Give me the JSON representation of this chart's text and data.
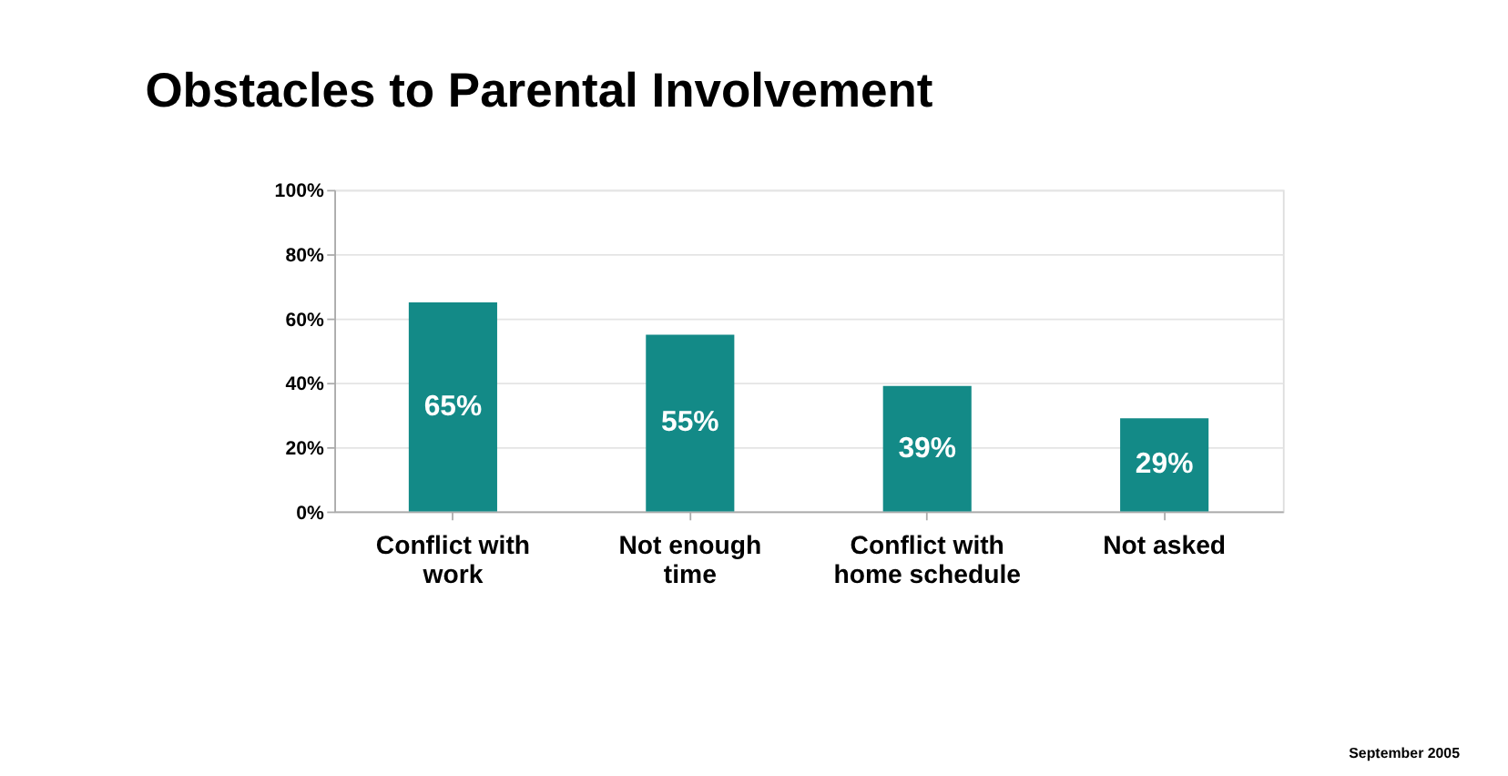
{
  "chart_data": {
    "type": "bar",
    "title": "Obstacles to Parental Involvement",
    "categories": [
      "Conflict with work",
      "Not enough time",
      "Conflict with home schedule",
      "Not asked"
    ],
    "values": [
      65,
      55,
      39,
      29
    ],
    "color": "#138a87",
    "data_labels": true,
    "value_labels": [
      "65%",
      "55%",
      "39%",
      "29%"
    ],
    "ylim": [
      0,
      100
    ],
    "yticks": [
      {
        "value": 0,
        "label": "0%"
      },
      {
        "value": 20,
        "label": "20%"
      },
      {
        "value": 40,
        "label": "40%"
      },
      {
        "value": 60,
        "label": "60%"
      },
      {
        "value": 80,
        "label": "80%"
      },
      {
        "value": 100,
        "label": "100%"
      }
    ],
    "grid": "y",
    "annotations": [
      "September 2005"
    ]
  }
}
